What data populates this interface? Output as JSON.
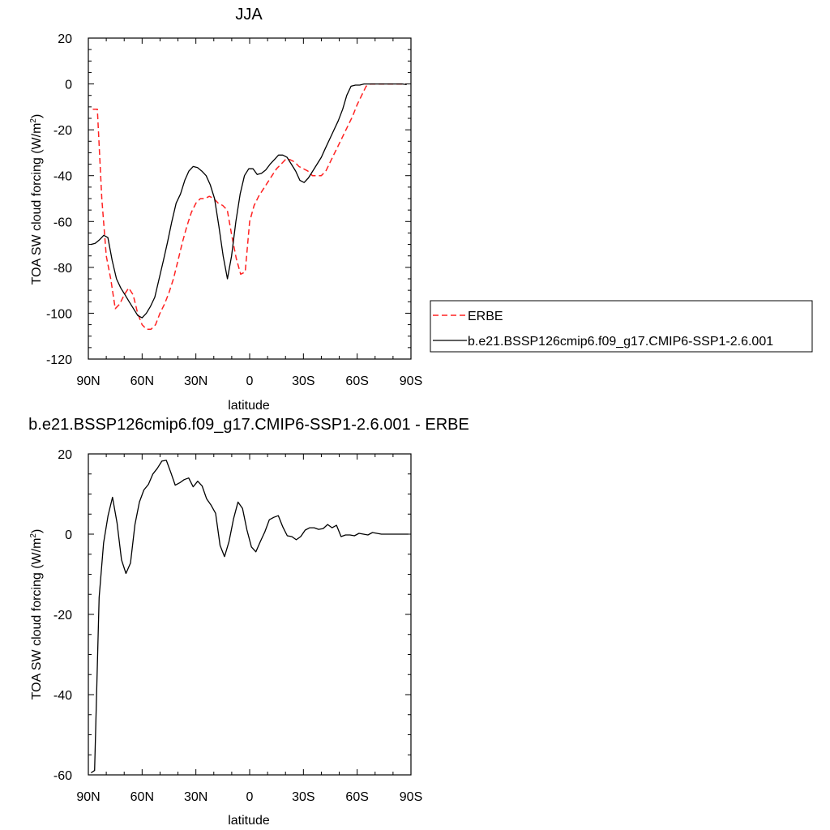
{
  "chart_data": [
    {
      "type": "line",
      "title": "JJA",
      "xlabel": "latitude",
      "ylabel": "TOA SW cloud forcing (W/m",
      "ylabel_sup": "2",
      "ylabel_tail": ")",
      "xlim": [
        90,
        -90
      ],
      "ylim": [
        -120,
        20
      ],
      "xticks": [
        {
          "v": 90,
          "label": "90N"
        },
        {
          "v": 60,
          "label": "60N"
        },
        {
          "v": 30,
          "label": "30N"
        },
        {
          "v": 0,
          "label": "0"
        },
        {
          "v": -30,
          "label": "30S"
        },
        {
          "v": -60,
          "label": "60S"
        },
        {
          "v": -90,
          "label": "90S"
        }
      ],
      "yticks": [
        {
          "v": 20,
          "label": "20"
        },
        {
          "v": 0,
          "label": "0"
        },
        {
          "v": -20,
          "label": "-20"
        },
        {
          "v": -40,
          "label": "-40"
        },
        {
          "v": -60,
          "label": "-60"
        },
        {
          "v": -80,
          "label": "-80"
        },
        {
          "v": -100,
          "label": "-100"
        },
        {
          "v": -120,
          "label": "-120"
        }
      ],
      "legend_position": "right",
      "series": [
        {
          "name": "ERBE",
          "color": "#ff2222",
          "dash": "dashed",
          "x": [
            87.5,
            85,
            82.5,
            80,
            77.5,
            75,
            72.5,
            70,
            67.5,
            65,
            62.5,
            60,
            57.5,
            55,
            52.5,
            50,
            47.5,
            45,
            42.5,
            40,
            37.5,
            35,
            32.5,
            30,
            27.5,
            25,
            22.5,
            20,
            17.5,
            15,
            12.5,
            10,
            7.5,
            5,
            2.5,
            0,
            -2.5,
            -5,
            -7.5,
            -10,
            -12.5,
            -15,
            -17.5,
            -20,
            -22.5,
            -25,
            -27.5,
            -30,
            -32.5,
            -35,
            -37.5,
            -40,
            -42.5,
            -45,
            -47.5,
            -50,
            -52.5,
            -55,
            -57.5,
            -60,
            -62.5,
            -65,
            -67.5,
            -70,
            -72.5,
            -75,
            -77.5,
            -80,
            -82.5,
            -85,
            -87.5
          ],
          "y": [
            -11,
            -11,
            -50,
            -75,
            -85,
            -98,
            -96,
            -92,
            -89,
            -92,
            -100,
            -105,
            -107,
            -107,
            -105,
            -100,
            -96,
            -91,
            -85,
            -77,
            -69,
            -62,
            -56,
            -52,
            -50,
            -50,
            -49,
            -50,
            -52,
            -53,
            -55,
            -66,
            -76,
            -83,
            -82,
            -60,
            -53,
            -49,
            -46,
            -43,
            -40,
            -37,
            -35,
            -33,
            -33,
            -34,
            -36,
            -37,
            -38,
            -40,
            -40,
            -40,
            -38,
            -34,
            -30,
            -26,
            -22,
            -18,
            -14,
            -9,
            -5,
            -1,
            0,
            0,
            0,
            0,
            0,
            0,
            0,
            0,
            0
          ]
        },
        {
          "name": "b.e21.BSSP126cmip6.f09_g17.CMIP6-SSP1-2.6.001",
          "color": "#000000",
          "dash": "solid",
          "x": [
            88.6,
            86.2,
            83.8,
            81.4,
            79.1,
            76.7,
            74.3,
            71.9,
            69.5,
            67.2,
            64.8,
            62.4,
            60,
            57.6,
            55.3,
            52.9,
            50.5,
            48.1,
            45.8,
            43.4,
            41,
            38.6,
            36.2,
            33.9,
            31.5,
            29.1,
            26.7,
            24.3,
            22,
            19.6,
            17.2,
            14.8,
            12.4,
            10.1,
            7.7,
            5.3,
            2.9,
            0.5,
            -1.9,
            -4.2,
            -6.6,
            -9,
            -11.4,
            -13.8,
            -16.1,
            -18.5,
            -20.9,
            -23.3,
            -25.7,
            -28,
            -30.4,
            -32.8,
            -35.2,
            -37.6,
            -40,
            -42.3,
            -44.7,
            -47.1,
            -49.5,
            -51.9,
            -54.2,
            -56.6,
            -59,
            -61.4,
            -63.8,
            -66.1,
            -68.5,
            -70.9,
            -73.3,
            -75.7,
            -78.1,
            -80.4,
            -82.8,
            -85.2,
            -87.6
          ],
          "y": [
            -70,
            -69.5,
            -68,
            -66,
            -67,
            -77,
            -85,
            -89,
            -92,
            -95,
            -98,
            -101,
            -102,
            -100,
            -97,
            -93,
            -85,
            -77,
            -69,
            -60,
            -52,
            -48,
            -42,
            -38,
            -36,
            -36.5,
            -38,
            -40,
            -44,
            -50,
            -62,
            -75,
            -85,
            -75,
            -60,
            -48,
            -40,
            -37,
            -37,
            -39.5,
            -39,
            -37.5,
            -35,
            -33,
            -31,
            -31,
            -32,
            -35,
            -38,
            -42,
            -43,
            -41,
            -38,
            -35,
            -32,
            -28,
            -24,
            -20,
            -16,
            -11,
            -5,
            -1,
            -0.5,
            -0.5,
            0,
            0,
            0,
            0,
            0,
            0,
            0,
            0,
            0,
            0,
            -0.3
          ]
        }
      ]
    },
    {
      "type": "line",
      "title": "b.e21.BSSP126cmip6.f09_g17.CMIP6-SSP1-2.6.001 - ERBE",
      "xlabel": "latitude",
      "ylabel": "TOA SW cloud forcing (W/m",
      "ylabel_sup": "2",
      "ylabel_tail": ")",
      "xlim": [
        90,
        -90
      ],
      "ylim": [
        -60,
        20
      ],
      "xticks": [
        {
          "v": 90,
          "label": "90N"
        },
        {
          "v": 60,
          "label": "60N"
        },
        {
          "v": 30,
          "label": "30N"
        },
        {
          "v": 0,
          "label": "0"
        },
        {
          "v": -30,
          "label": "30S"
        },
        {
          "v": -60,
          "label": "60S"
        },
        {
          "v": -90,
          "label": "90S"
        }
      ],
      "yticks": [
        {
          "v": 20,
          "label": "20"
        },
        {
          "v": 0,
          "label": "0"
        },
        {
          "v": -20,
          "label": "-20"
        },
        {
          "v": -40,
          "label": "-40"
        },
        {
          "v": -60,
          "label": "-60"
        }
      ],
      "series": [
        {
          "color": "#000000",
          "dash": "solid",
          "x": [
            88.5,
            86.5,
            84,
            81.5,
            79,
            76.5,
            74,
            71.5,
            69,
            66.5,
            64,
            61.5,
            59,
            56.5,
            54,
            51.5,
            49,
            46.5,
            44,
            41.5,
            39,
            36.5,
            34,
            31.5,
            29,
            26.5,
            24,
            21.5,
            19,
            16.5,
            14,
            11.5,
            9,
            6.5,
            4,
            1.5,
            -1,
            -3.5,
            -6,
            -8.5,
            -11,
            -13.5,
            -16,
            -18.5,
            -21,
            -23.5,
            -26,
            -28.5,
            -31,
            -33.5,
            -36,
            -38.5,
            -41,
            -43.5,
            -46,
            -48.5,
            -51,
            -53.5,
            -56,
            -58.5,
            -61,
            -63.5,
            -66,
            -68.5,
            -71,
            -73.5,
            -76,
            -78.5,
            -81,
            -83.5,
            -86,
            -88.5
          ],
          "y": [
            -59.5,
            -58.9,
            -15.8,
            -2.2,
            4.6,
            9.2,
            2.8,
            -6.4,
            -9.8,
            -7.2,
            2.4,
            8.0,
            11.0,
            12.4,
            15.0,
            16.4,
            18.2,
            18.4,
            15.4,
            12.2,
            12.8,
            13.6,
            14.0,
            11.8,
            13.2,
            12.0,
            8.8,
            7.2,
            5.2,
            -2.8,
            -5.6,
            -1.8,
            3.8,
            8.0,
            6.4,
            1.0,
            -3.2,
            -4.4,
            -1.8,
            0.6,
            3.6,
            4.2,
            4.6,
            1.8,
            -0.4,
            -0.6,
            -1.4,
            -0.6,
            1.0,
            1.6,
            1.6,
            1.2,
            1.4,
            2.4,
            1.6,
            2.2,
            -0.6,
            -0.2,
            -0.2,
            -0.4,
            0.2,
            0.0,
            -0.2,
            0.4,
            0.2,
            0.0,
            0.0,
            0.0,
            0.0,
            0.0,
            0.0,
            0.0
          ]
        }
      ]
    }
  ]
}
